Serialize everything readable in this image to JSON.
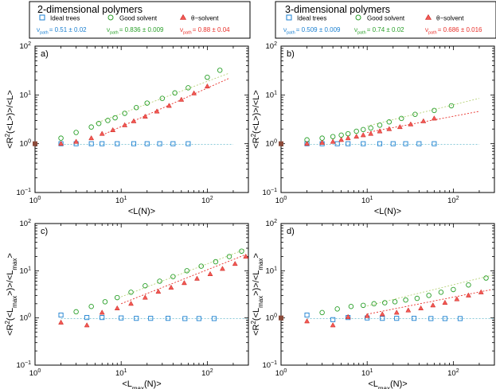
{
  "headers": [
    {
      "title": "2-dimensional polymers",
      "legend": [
        {
          "label": "Ideal trees",
          "nu_sym": "ν",
          "nu_sub": "path",
          "nu_val": "= 0.51 ± 0.02",
          "color": "#1a7fd0"
        },
        {
          "label": "Good solvent",
          "nu_sym": "ν",
          "nu_sub": "path",
          "nu_val": "= 0.836 ± 0.009",
          "color": "#2aa02a"
        },
        {
          "label": "θ−solvent",
          "nu_sym": "ν",
          "nu_sub": "path",
          "nu_val": "= 0.88 ± 0.04",
          "color": "#e8302a"
        }
      ]
    },
    {
      "title": "3-dimensional polymers",
      "legend": [
        {
          "label": "Ideal trees",
          "nu_sym": "ν",
          "nu_sub": "path",
          "nu_val": "= 0.509 ± 0.009",
          "color": "#1a7fd0"
        },
        {
          "label": "Good solvent",
          "nu_sym": "ν",
          "nu_sub": "path",
          "nu_val": "= 0.74 ± 0.02",
          "color": "#2aa02a"
        },
        {
          "label": "θ−solvent",
          "nu_sym": "ν",
          "nu_sub": "path",
          "nu_val": "= 0.686 ± 0.016",
          "color": "#e8302a"
        }
      ]
    }
  ],
  "colors": {
    "ideal": "#1a7fd0",
    "good": "#2aa02a",
    "theta": "#e8302a",
    "marker": "#8b4a3a"
  },
  "chart_data": [
    {
      "type": "scatter",
      "panel": "a)",
      "log": true,
      "xlim": [
        1,
        300
      ],
      "ylim": [
        0.1,
        100
      ],
      "xlabel": "<L(N)>",
      "ylabel": "<R²(<L>)>/<L>",
      "xticks": [
        "10^0",
        "10^1",
        "10^2"
      ],
      "yticks": [
        "10^-1",
        "10^0",
        "10^1",
        "10^2"
      ],
      "marker_point": [
        1,
        1
      ],
      "series": [
        {
          "name": "Ideal trees",
          "symbol": "square",
          "x": [
            2,
            3,
            4.5,
            6,
            9,
            14,
            20,
            28,
            40,
            60
          ],
          "y": [
            1.0,
            1.0,
            1.0,
            1.0,
            1.0,
            1.0,
            1.0,
            1.0,
            1.0,
            1.0
          ]
        },
        {
          "name": "Good solvent",
          "symbol": "circle",
          "x": [
            2,
            3,
            4.5,
            5.5,
            7,
            8.5,
            11,
            15,
            20,
            30,
            42,
            60,
            100,
            140
          ],
          "y": [
            1.3,
            1.7,
            2.2,
            2.6,
            3.0,
            3.4,
            4.2,
            5.5,
            6.8,
            8.5,
            11,
            14,
            23,
            32
          ],
          "fit": {
            "x": [
              5,
              180
            ],
            "y": [
              2.6,
              28
            ]
          }
        },
        {
          "name": "θ−solvent",
          "symbol": "triangle",
          "x": [
            2,
            3,
            4.5,
            6,
            8,
            11,
            14,
            19,
            26,
            36,
            50,
            70,
            100
          ],
          "y": [
            1.0,
            1.1,
            1.3,
            1.6,
            1.9,
            2.4,
            2.9,
            3.6,
            4.6,
            6.0,
            8.0,
            10.8,
            15
          ],
          "fit": {
            "x": [
              6,
              180
            ],
            "y": [
              1.5,
              22
            ]
          }
        },
        {
          "name": "Ideal fit",
          "symbol": "none",
          "x": [
            2,
            200
          ],
          "y": [
            0.97,
            0.97
          ]
        }
      ]
    },
    {
      "type": "scatter",
      "panel": "b)",
      "log": true,
      "xlim": [
        1,
        300
      ],
      "ylim": [
        0.1,
        100
      ],
      "xlabel": "<L(N)>",
      "ylabel": "<R²(<L>)>/<L>",
      "xticks": [
        "10^0",
        "10^1",
        "10^2"
      ],
      "yticks": [
        "10^-1",
        "10^0",
        "10^1",
        "10^2"
      ],
      "marker_point": [
        1,
        1
      ],
      "series": [
        {
          "name": "Ideal trees",
          "symbol": "square",
          "x": [
            2,
            3,
            4.5,
            6,
            9,
            14,
            20,
            28,
            40,
            60
          ],
          "y": [
            1.0,
            1.0,
            1.0,
            1.0,
            1.0,
            1.0,
            1.0,
            1.0,
            1.0,
            1.0
          ]
        },
        {
          "name": "Good solvent",
          "symbol": "circle",
          "x": [
            2,
            3,
            4,
            5,
            6,
            7.5,
            9,
            11,
            14,
            18,
            25,
            36,
            60,
            95
          ],
          "y": [
            1.2,
            1.3,
            1.4,
            1.5,
            1.6,
            1.8,
            1.95,
            2.1,
            2.4,
            2.8,
            3.3,
            4.0,
            4.8,
            6.0
          ],
          "fit": {
            "x": [
              10,
              200
            ],
            "y": [
              2.3,
              8.5
            ]
          }
        },
        {
          "name": "θ−solvent",
          "symbol": "triangle",
          "x": [
            2,
            3,
            4,
            5,
            6,
            7.5,
            9,
            11,
            14,
            18,
            24,
            32,
            45,
            60
          ],
          "y": [
            1.0,
            1.05,
            1.1,
            1.2,
            1.3,
            1.4,
            1.5,
            1.6,
            1.8,
            2.0,
            2.2,
            2.5,
            2.9,
            3.3
          ],
          "fit": {
            "x": [
              10,
              200
            ],
            "y": [
              1.7,
              4.6
            ]
          }
        },
        {
          "name": "Ideal fit",
          "symbol": "none",
          "x": [
            2,
            200
          ],
          "y": [
            0.97,
            0.97
          ]
        }
      ]
    },
    {
      "type": "scatter",
      "panel": "c)",
      "log": true,
      "xlim": [
        1,
        300
      ],
      "ylim": [
        0.1,
        100
      ],
      "xlabel": "<L_max(N)>",
      "ylabel": "<R²(<L_max>)>/<L_max>",
      "xticks": [
        "10^0",
        "10^1",
        "10^2"
      ],
      "yticks": [
        "10^-1",
        "10^0",
        "10^1",
        "10^2"
      ],
      "series": [
        {
          "name": "Ideal trees",
          "symbol": "square",
          "x": [
            2,
            4,
            6,
            10,
            15,
            22,
            35,
            55,
            80,
            120
          ],
          "y": [
            1.15,
            1.02,
            1.02,
            1.0,
            0.98,
            0.98,
            0.98,
            0.97,
            0.97,
            0.97
          ]
        },
        {
          "name": "Good solvent",
          "symbol": "circle",
          "x": [
            3,
            4.5,
            6.5,
            9,
            13,
            19,
            28,
            40,
            58,
            85,
            125,
            180,
            250
          ],
          "y": [
            1.35,
            1.75,
            2.2,
            2.7,
            3.5,
            4.8,
            6.0,
            7.5,
            10,
            12.5,
            15.5,
            20,
            26
          ],
          "fit": {
            "x": [
              10,
              270
            ],
            "y": [
              2.8,
              28
            ]
          }
        },
        {
          "name": "θ−solvent",
          "symbol": "triangle",
          "x": [
            2,
            4,
            6,
            9,
            13,
            19,
            27,
            38,
            54,
            76,
            108,
            150,
            210,
            280
          ],
          "y": [
            0.8,
            0.7,
            1.3,
            1.6,
            2.0,
            2.7,
            3.6,
            4.4,
            5.5,
            6.8,
            8.5,
            11,
            14,
            20
          ],
          "fit": {
            "x": [
              10,
              280
            ],
            "y": [
              2.0,
              22
            ]
          }
        },
        {
          "name": "Ideal fit",
          "symbol": "none",
          "x": [
            2,
            300
          ],
          "y": [
            0.97,
            0.97
          ]
        }
      ]
    },
    {
      "type": "scatter",
      "panel": "d)",
      "log": true,
      "xlim": [
        1,
        300
      ],
      "ylim": [
        0.1,
        100
      ],
      "xlabel": "<L_max(N)>",
      "ylabel": "<R²(<L_max>)>/<L_max>",
      "xticks": [
        "10^0",
        "10^1",
        "10^2"
      ],
      "yticks": [
        "10^-1",
        "10^0",
        "10^1",
        "10^2"
      ],
      "marker_point": [
        1,
        1
      ],
      "series": [
        {
          "name": "Ideal trees",
          "symbol": "square",
          "x": [
            2,
            4,
            6,
            10,
            15,
            22,
            35,
            55,
            80,
            120
          ],
          "y": [
            1.15,
            0.92,
            1.02,
            1.0,
            0.98,
            0.98,
            0.98,
            0.97,
            0.97,
            0.97
          ]
        },
        {
          "name": "Good solvent",
          "symbol": "circle",
          "x": [
            3,
            4.5,
            6.5,
            9,
            12,
            16,
            21,
            28,
            38,
            52,
            72,
            100,
            150,
            240
          ],
          "y": [
            1.3,
            1.55,
            1.75,
            1.85,
            2.0,
            2.1,
            2.2,
            2.4,
            2.6,
            3.0,
            3.5,
            4.0,
            5.0,
            7.0
          ],
          "fit": {
            "x": [
              10,
              280
            ],
            "y": [
              1.8,
              8.0
            ]
          }
        },
        {
          "name": "θ−solvent",
          "symbol": "triangle",
          "x": [
            2,
            4,
            6,
            10,
            15,
            22,
            30,
            42,
            58,
            80,
            110,
            150,
            210
          ],
          "y": [
            0.85,
            0.7,
            1.05,
            1.1,
            1.2,
            1.3,
            1.45,
            1.6,
            1.85,
            2.1,
            2.5,
            3.0,
            3.5
          ],
          "fit": {
            "x": [
              10,
              280
            ],
            "y": [
              1.2,
              4.0
            ]
          }
        },
        {
          "name": "Ideal fit",
          "symbol": "none",
          "x": [
            2,
            300
          ],
          "y": [
            0.97,
            0.97
          ]
        }
      ]
    }
  ]
}
